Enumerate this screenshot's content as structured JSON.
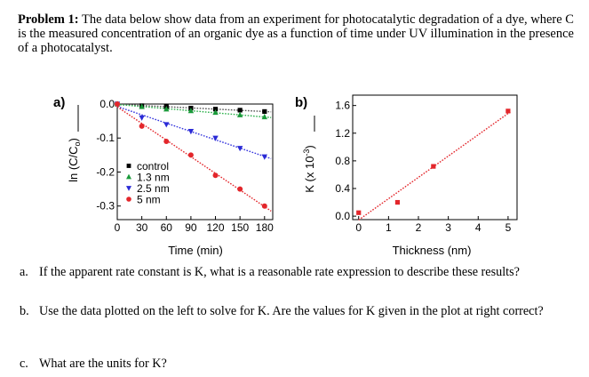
{
  "problem": {
    "label": "Problem 1:",
    "text": " The data below show data from an experiment for photocatalytic degradation of a dye, where C is the measured concentration of an organic dye as a function of time under UV illumination in the presence of a photocatalyst."
  },
  "questions": [
    {
      "label": "a.",
      "text": "If the apparent rate constant is K, what is a reasonable rate expression to describe these results?"
    },
    {
      "label": "b.",
      "text": "Use the data plotted on the left to solve for K.  Are the values for K given in the plot at right correct?"
    },
    {
      "label": "c.",
      "text": "What are the units for K?"
    }
  ],
  "chart_data": [
    {
      "type": "scatter",
      "panel_label": "a)",
      "xlabel": "Time (min)",
      "ylabel": "ln (C/C",
      "ylabel_sub": "o",
      "ylabel_close": ")",
      "xlim": [
        0,
        190
      ],
      "ylim": [
        -0.34,
        0.0
      ],
      "x_ticks": [
        0,
        30,
        60,
        90,
        120,
        150,
        180
      ],
      "x_tick_labels": [
        "0",
        "30",
        "60",
        "90",
        "120",
        "150",
        "180"
      ],
      "y_ticks": [
        0.0,
        -0.1,
        -0.2,
        -0.3
      ],
      "y_tick_labels": [
        "0.0",
        "-0.1",
        "-0.2",
        "-0.3"
      ],
      "series": [
        {
          "name": "control",
          "marker": "square",
          "color": "#000000",
          "line_color": "#555555",
          "x": [
            0,
            30,
            60,
            90,
            120,
            150,
            180
          ],
          "y": [
            0.0,
            -0.005,
            -0.008,
            -0.012,
            -0.015,
            -0.018,
            -0.022
          ]
        },
        {
          "name": "1.3 nm",
          "marker": "triangle-up",
          "color": "#1a9a3a",
          "line_color": "#2bb04a",
          "x": [
            0,
            30,
            60,
            90,
            120,
            150,
            180
          ],
          "y": [
            0.0,
            -0.008,
            -0.015,
            -0.02,
            -0.025,
            -0.032,
            -0.038
          ]
        },
        {
          "name": "2.5 nm",
          "marker": "triangle-down",
          "color": "#2a2ad6",
          "line_color": "#3333dd",
          "x": [
            0,
            30,
            60,
            90,
            120,
            150,
            180
          ],
          "y": [
            0.0,
            -0.04,
            -0.06,
            -0.08,
            -0.1,
            -0.13,
            -0.155
          ]
        },
        {
          "name": "5 nm",
          "marker": "circle",
          "color": "#e3262b",
          "line_color": "#e3262b",
          "x": [
            0,
            30,
            60,
            90,
            120,
            150,
            180
          ],
          "y": [
            0.0,
            -0.065,
            -0.11,
            -0.15,
            -0.21,
            -0.25,
            -0.3
          ]
        }
      ],
      "legend_position": "bottom-left"
    },
    {
      "type": "scatter",
      "panel_label": "b)",
      "xlabel": "Thickness (nm)",
      "ylabel": "K (x 10",
      "ylabel_sup": "-3",
      "ylabel_close": ")",
      "xlim": [
        -0.2,
        5.3
      ],
      "ylim": [
        -0.05,
        1.75
      ],
      "x_ticks": [
        0,
        1,
        2,
        3,
        4,
        5
      ],
      "x_tick_labels": [
        "0",
        "1",
        "2",
        "3",
        "4",
        "5"
      ],
      "y_ticks": [
        0.0,
        0.4,
        0.8,
        1.2,
        1.6
      ],
      "y_tick_labels": [
        "0.0",
        "0.4",
        "0.8",
        "1.2",
        "1.6"
      ],
      "series": [
        {
          "name": "K",
          "marker": "square",
          "color": "#e3262b",
          "line_color": "#e3262b",
          "x": [
            0.0,
            1.3,
            2.5,
            5.0
          ],
          "y": [
            0.05,
            0.2,
            0.72,
            1.52
          ]
        }
      ]
    }
  ]
}
